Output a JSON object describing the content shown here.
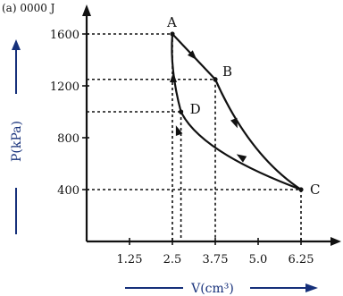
{
  "corner_text": "(a) 0000 J",
  "colors": {
    "ink": "#111111",
    "axis_title": "#16307a",
    "background": "#ffffff"
  },
  "chart_data": {
    "type": "line",
    "title": "",
    "xlabel": "V(cm³)",
    "ylabel": "P(kPa)",
    "x_ticks": [
      1.25,
      2.5,
      3.75,
      5.0,
      6.25
    ],
    "x_tick_labels": [
      "1.25",
      "2.5",
      "3.75",
      "5.0",
      "6.25"
    ],
    "y_ticks": [
      400,
      800,
      1200,
      1600
    ],
    "y_tick_labels": [
      "400",
      "800",
      "1200",
      "1600"
    ],
    "xlim": [
      0,
      7.5
    ],
    "ylim": [
      0,
      1800
    ],
    "points": [
      {
        "label": "A",
        "x": 2.5,
        "y": 1600
      },
      {
        "label": "B",
        "x": 3.75,
        "y": 1250
      },
      {
        "label": "C",
        "x": 6.25,
        "y": 400
      },
      {
        "label": "D",
        "x": 2.75,
        "y": 1000
      }
    ],
    "paths": [
      {
        "from": "A",
        "to": "B",
        "style": "straight"
      },
      {
        "from": "B",
        "to": "C",
        "style": "curve"
      },
      {
        "from": "C",
        "to": "D",
        "style": "curve"
      },
      {
        "from": "D",
        "to": "A",
        "style": "curve"
      }
    ],
    "dashed_guides_y": [
      1600,
      1250,
      1000,
      400
    ],
    "dashed_guides_x": [
      2.5,
      2.75,
      3.75,
      6.25
    ],
    "grid": false,
    "legend": "none"
  }
}
